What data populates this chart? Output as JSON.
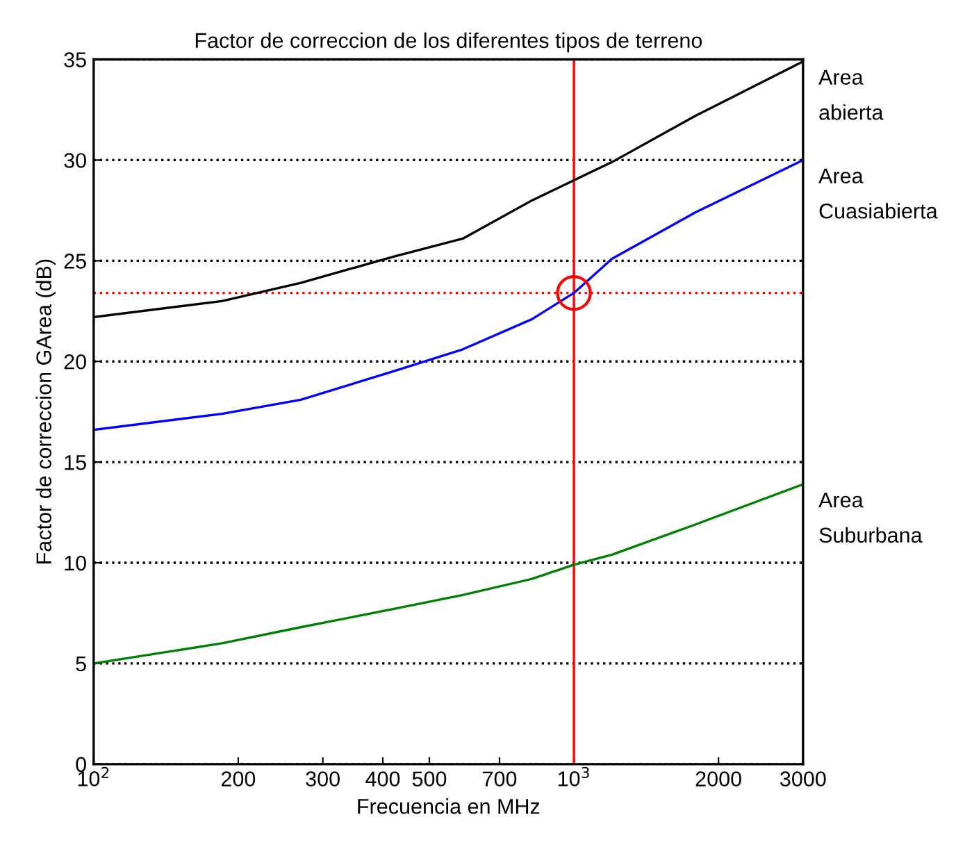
{
  "chart_data": {
    "type": "line",
    "title": "Factor de correccion de los diferentes tipos de terreno",
    "xlabel": "Frecuencia en MHz",
    "ylabel": "Factor de correccion GArea (dB)",
    "log": "x",
    "xlim": [
      100,
      3000
    ],
    "ylim": [
      0,
      35
    ],
    "xticks": [
      {
        "value": 100,
        "label": "10$^{2}$"
      },
      200,
      300,
      400,
      500,
      700,
      {
        "value": 1000,
        "label": "10$^{3}$"
      },
      2000,
      3000
    ],
    "yticks": [
      0,
      5,
      10,
      15,
      20,
      25,
      30,
      35
    ],
    "grid": "y",
    "legend": false,
    "line_style": "solid",
    "marker": "none",
    "series": [
      {
        "name": "Area\nabierta",
        "color": "#000000",
        "x": [
          100,
          185,
          270,
          420,
          587,
          818,
          1000,
          1200,
          1790,
          3000
        ],
        "values": [
          22.2,
          23.0,
          23.9,
          25.2,
          26.1,
          28.0,
          29.0,
          29.9,
          32.2,
          34.9
        ]
      },
      {
        "name": "Area\nCuasiabierta",
        "color": "#0000ff",
        "x": [
          100,
          185,
          270,
          420,
          587,
          818,
          1000,
          1200,
          1790,
          3000
        ],
        "values": [
          16.6,
          17.4,
          18.1,
          19.5,
          20.6,
          22.1,
          23.4,
          25.1,
          27.4,
          30.0
        ]
      },
      {
        "name": "Area\nSuburbana",
        "color": "#008000",
        "x": [
          100,
          185,
          270,
          420,
          587,
          818,
          1000,
          1200,
          1790,
          3000
        ],
        "values": [
          5.0,
          6.0,
          6.8,
          7.7,
          8.4,
          9.2,
          9.9,
          10.4,
          11.9,
          13.9
        ]
      },
      {
        "type": "scatter",
        "marker": "circle",
        "color": "#ff0000",
        "x": [
          1000
        ],
        "values": [
          23.4
        ]
      }
    ],
    "ref_lines": [
      {
        "axis": "x",
        "value": 1000,
        "color": "#ff0000",
        "line_style": "solid"
      },
      {
        "axis": "y",
        "value": 23.4,
        "color": "#ff0000",
        "line_style": "dotted"
      }
    ]
  }
}
